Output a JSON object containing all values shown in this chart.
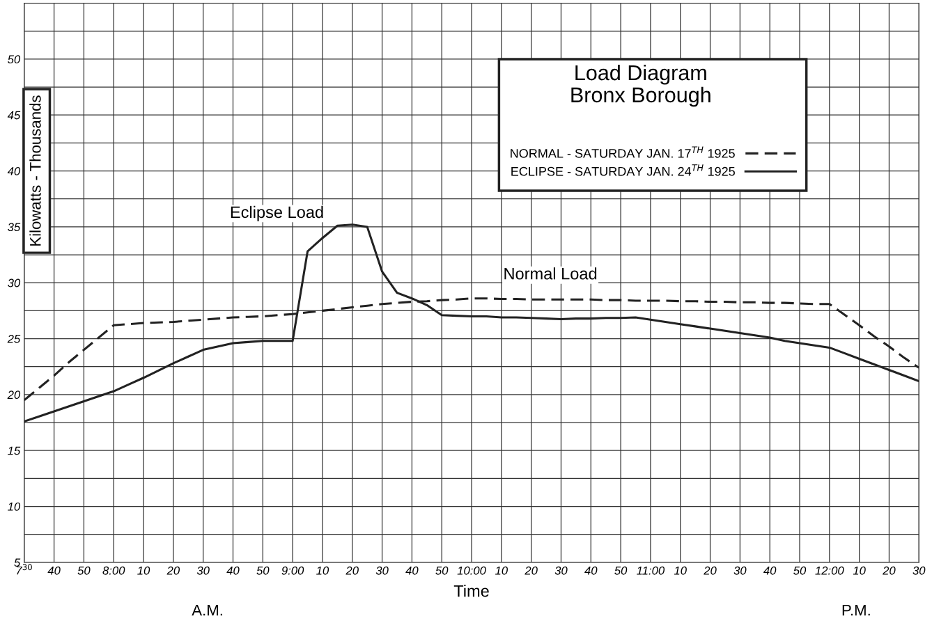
{
  "chart_data": {
    "type": "line",
    "title": "Load Diagram\nBronx Borough",
    "xlabel": "Time",
    "ylabel": "Kilowatts - Thousands",
    "categories": [
      "7$^{30}$",
      null,
      "40",
      null,
      "50",
      null,
      "8:00",
      null,
      "10",
      null,
      "20",
      null,
      "30",
      null,
      "40",
      null,
      "50",
      null,
      "9:00",
      null,
      "10",
      null,
      "20",
      null,
      "30",
      null,
      "40",
      null,
      "50",
      null,
      "10:00",
      null,
      "10",
      null,
      "20",
      null,
      "30",
      null,
      "40",
      null,
      "50",
      null,
      "11:00",
      null,
      "10",
      null,
      "20",
      null,
      "30",
      null,
      "40",
      null,
      "50",
      null,
      "12:00",
      null,
      "10",
      null,
      "20",
      null,
      "30"
    ],
    "ylim": [
      5,
      55
    ],
    "yticks": [
      5,
      {
        "value": 7.5,
        "label": null
      },
      10,
      {
        "value": 12.5,
        "label": null
      },
      15,
      {
        "value": 17.5,
        "label": null
      },
      20,
      {
        "value": 22.5,
        "label": null
      },
      25,
      {
        "value": 27.5,
        "label": null
      },
      30,
      {
        "value": 32.5,
        "label": null
      },
      35,
      {
        "value": 37.5,
        "label": null
      },
      40,
      {
        "value": 42.5,
        "label": null
      },
      45,
      {
        "value": 47.5,
        "label": null
      },
      50,
      {
        "value": 52.5,
        "label": null
      }
    ],
    "grid": true,
    "legend": "top right",
    "series": [
      {
        "name": "NORMAL - SATURDAY JAN. 17$^{TH}$ 1925",
        "color": "#222222",
        "line_style": "dashed",
        "values": [
          19.5,
          20.6,
          21.7,
          22.9,
          24.0,
          25.1,
          26.2,
          26.3,
          26.4,
          26.45,
          26.5,
          26.6,
          26.7,
          26.8,
          26.9,
          26.95,
          27.0,
          27.1,
          27.2,
          27.35,
          27.5,
          27.65,
          27.8,
          27.95,
          28.1,
          28.2,
          28.3,
          28.35,
          28.45,
          28.5,
          28.6,
          28.6,
          28.55,
          28.55,
          28.5,
          28.5,
          28.5,
          28.5,
          28.5,
          28.45,
          28.45,
          28.4,
          28.4,
          28.4,
          28.35,
          28.35,
          28.3,
          28.3,
          28.25,
          28.25,
          28.2,
          28.2,
          28.15,
          28.1,
          28.1,
          27.15,
          26.2,
          25.2,
          24.3,
          23.3,
          22.4
        ]
      },
      {
        "name": "ECLIPSE - SATURDAY JAN. 24$^{TH}$ 1925",
        "color": "#222222",
        "line_style": "solid",
        "values": [
          17.6,
          18.05,
          18.5,
          18.95,
          19.4,
          19.85,
          20.3,
          20.9,
          21.5,
          22.15,
          22.8,
          23.4,
          24.0,
          24.3,
          24.6,
          24.7,
          24.8,
          24.8,
          24.8,
          32.8,
          34.0,
          35.1,
          35.2,
          35.0,
          31.0,
          29.1,
          28.6,
          28.0,
          27.1,
          27.05,
          27.0,
          27.0,
          26.9,
          26.9,
          26.85,
          26.8,
          26.75,
          26.8,
          26.8,
          26.85,
          26.85,
          26.9,
          26.7,
          26.5,
          26.3,
          26.1,
          25.9,
          25.7,
          25.5,
          25.3,
          25.1,
          24.8,
          24.6,
          24.4,
          24.2,
          23.7,
          23.2,
          22.7,
          22.2,
          21.7,
          21.2
        ]
      }
    ],
    "annotations": [
      "Eclipse Load",
      "Normal Load",
      "A.M.",
      "P.M."
    ]
  }
}
